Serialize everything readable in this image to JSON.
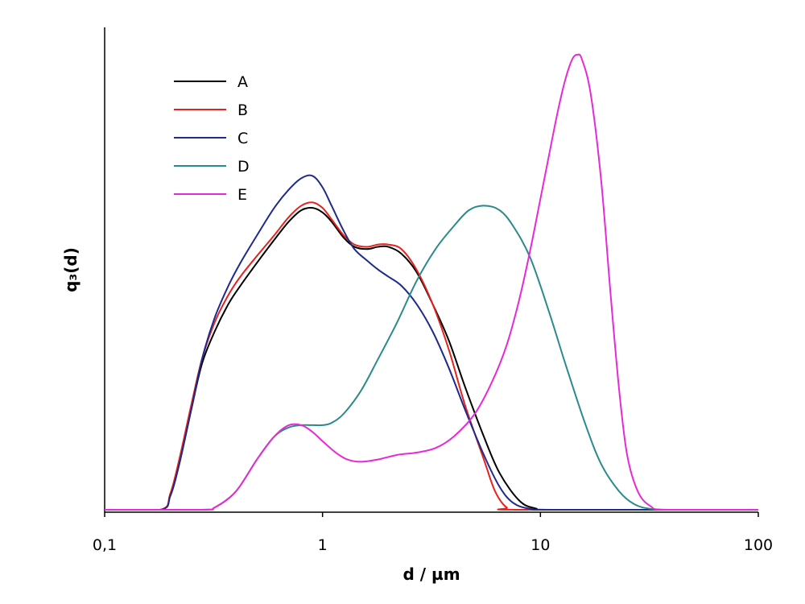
{
  "chart_data": {
    "type": "line",
    "title": "",
    "xlabel": "d / µm",
    "ylabel": "q₃(d)",
    "xscale": "log",
    "xlim": [
      0.1,
      100
    ],
    "ylim": [
      0,
      1.06
    ],
    "y_ticks_shown": false,
    "grid": false,
    "legend_position": "top-left",
    "x_ticks": [
      {
        "value": 0.1,
        "label": "0,1"
      },
      {
        "value": 1,
        "label": "1"
      },
      {
        "value": 10,
        "label": "10"
      },
      {
        "value": 100,
        "label": "100"
      }
    ],
    "series": [
      {
        "name": "A",
        "color": "#000000",
        "points": [
          [
            0.1,
            0
          ],
          [
            0.18,
            0
          ],
          [
            0.2,
            0.03
          ],
          [
            0.22,
            0.1
          ],
          [
            0.25,
            0.22
          ],
          [
            0.28,
            0.32
          ],
          [
            0.32,
            0.39
          ],
          [
            0.37,
            0.45
          ],
          [
            0.42,
            0.49
          ],
          [
            0.5,
            0.54
          ],
          [
            0.6,
            0.59
          ],
          [
            0.7,
            0.63
          ],
          [
            0.8,
            0.655
          ],
          [
            0.9,
            0.66
          ],
          [
            1.0,
            0.65
          ],
          [
            1.1,
            0.63
          ],
          [
            1.25,
            0.595
          ],
          [
            1.4,
            0.575
          ],
          [
            1.6,
            0.57
          ],
          [
            1.8,
            0.575
          ],
          [
            2.0,
            0.575
          ],
          [
            2.3,
            0.56
          ],
          [
            2.7,
            0.52
          ],
          [
            3.2,
            0.45
          ],
          [
            3.8,
            0.37
          ],
          [
            4.5,
            0.27
          ],
          [
            5.5,
            0.16
          ],
          [
            6.5,
            0.08
          ],
          [
            8,
            0.02
          ],
          [
            9.5,
            0.003
          ],
          [
            12,
            0
          ],
          [
            100,
            0
          ]
        ]
      },
      {
        "name": "B",
        "color": "#e4231f",
        "points": [
          [
            0.1,
            0
          ],
          [
            0.18,
            0
          ],
          [
            0.2,
            0.035
          ],
          [
            0.22,
            0.11
          ],
          [
            0.25,
            0.23
          ],
          [
            0.28,
            0.33
          ],
          [
            0.32,
            0.41
          ],
          [
            0.37,
            0.47
          ],
          [
            0.42,
            0.51
          ],
          [
            0.5,
            0.555
          ],
          [
            0.6,
            0.6
          ],
          [
            0.7,
            0.64
          ],
          [
            0.8,
            0.665
          ],
          [
            0.9,
            0.672
          ],
          [
            1.0,
            0.66
          ],
          [
            1.1,
            0.635
          ],
          [
            1.25,
            0.6
          ],
          [
            1.4,
            0.58
          ],
          [
            1.6,
            0.575
          ],
          [
            1.8,
            0.58
          ],
          [
            2.0,
            0.58
          ],
          [
            2.3,
            0.57
          ],
          [
            2.7,
            0.525
          ],
          [
            3.2,
            0.45
          ],
          [
            3.8,
            0.35
          ],
          [
            4.5,
            0.23
          ],
          [
            5.5,
            0.11
          ],
          [
            6.2,
            0.04
          ],
          [
            7,
            0.005
          ],
          [
            8,
            0
          ],
          [
            100,
            0
          ]
        ]
      },
      {
        "name": "C",
        "color": "#1f2a8c",
        "points": [
          [
            0.1,
            0
          ],
          [
            0.18,
            0
          ],
          [
            0.2,
            0.03
          ],
          [
            0.22,
            0.1
          ],
          [
            0.25,
            0.22
          ],
          [
            0.28,
            0.33
          ],
          [
            0.32,
            0.42
          ],
          [
            0.37,
            0.49
          ],
          [
            0.42,
            0.54
          ],
          [
            0.5,
            0.6
          ],
          [
            0.6,
            0.66
          ],
          [
            0.7,
            0.7
          ],
          [
            0.8,
            0.725
          ],
          [
            0.9,
            0.73
          ],
          [
            1.0,
            0.705
          ],
          [
            1.1,
            0.665
          ],
          [
            1.25,
            0.61
          ],
          [
            1.4,
            0.57
          ],
          [
            1.6,
            0.545
          ],
          [
            1.8,
            0.525
          ],
          [
            2.0,
            0.51
          ],
          [
            2.3,
            0.49
          ],
          [
            2.7,
            0.45
          ],
          [
            3.2,
            0.39
          ],
          [
            3.8,
            0.31
          ],
          [
            4.5,
            0.22
          ],
          [
            5.5,
            0.12
          ],
          [
            6.5,
            0.05
          ],
          [
            7.5,
            0.015
          ],
          [
            9,
            0.002
          ],
          [
            12,
            0
          ],
          [
            100,
            0
          ]
        ]
      },
      {
        "name": "D",
        "color": "#2b8a8a",
        "points": [
          [
            0.1,
            0
          ],
          [
            0.28,
            0
          ],
          [
            0.32,
            0.005
          ],
          [
            0.4,
            0.04
          ],
          [
            0.5,
            0.11
          ],
          [
            0.6,
            0.16
          ],
          [
            0.7,
            0.18
          ],
          [
            0.8,
            0.185
          ],
          [
            0.9,
            0.185
          ],
          [
            1.0,
            0.185
          ],
          [
            1.1,
            0.19
          ],
          [
            1.25,
            0.21
          ],
          [
            1.5,
            0.26
          ],
          [
            1.8,
            0.33
          ],
          [
            2.2,
            0.41
          ],
          [
            2.7,
            0.5
          ],
          [
            3.3,
            0.57
          ],
          [
            4,
            0.62
          ],
          [
            4.7,
            0.655
          ],
          [
            5.5,
            0.665
          ],
          [
            6.5,
            0.655
          ],
          [
            7.5,
            0.62
          ],
          [
            9,
            0.55
          ],
          [
            11,
            0.43
          ],
          [
            13,
            0.32
          ],
          [
            16,
            0.19
          ],
          [
            19,
            0.1
          ],
          [
            23,
            0.04
          ],
          [
            27,
            0.012
          ],
          [
            32,
            0.002
          ],
          [
            40,
            0
          ],
          [
            100,
            0
          ]
        ]
      },
      {
        "name": "E",
        "color": "#e62ad6",
        "points": [
          [
            0.1,
            0
          ],
          [
            0.28,
            0
          ],
          [
            0.32,
            0.005
          ],
          [
            0.4,
            0.04
          ],
          [
            0.5,
            0.11
          ],
          [
            0.6,
            0.16
          ],
          [
            0.7,
            0.185
          ],
          [
            0.8,
            0.185
          ],
          [
            0.9,
            0.17
          ],
          [
            1.0,
            0.15
          ],
          [
            1.15,
            0.125
          ],
          [
            1.3,
            0.11
          ],
          [
            1.5,
            0.105
          ],
          [
            1.8,
            0.11
          ],
          [
            2.2,
            0.12
          ],
          [
            2.7,
            0.125
          ],
          [
            3.3,
            0.135
          ],
          [
            4,
            0.16
          ],
          [
            5,
            0.21
          ],
          [
            6,
            0.28
          ],
          [
            7,
            0.36
          ],
          [
            8,
            0.46
          ],
          [
            9,
            0.57
          ],
          [
            10,
            0.68
          ],
          [
            11,
            0.78
          ],
          [
            12,
            0.87
          ],
          [
            13,
            0.94
          ],
          [
            14,
            0.985
          ],
          [
            14.8,
            0.995
          ],
          [
            15.5,
            0.985
          ],
          [
            17,
            0.91
          ],
          [
            19,
            0.72
          ],
          [
            21,
            0.47
          ],
          [
            23,
            0.26
          ],
          [
            25,
            0.12
          ],
          [
            28,
            0.04
          ],
          [
            32,
            0.008
          ],
          [
            38,
            0
          ],
          [
            100,
            0
          ]
        ]
      }
    ]
  }
}
